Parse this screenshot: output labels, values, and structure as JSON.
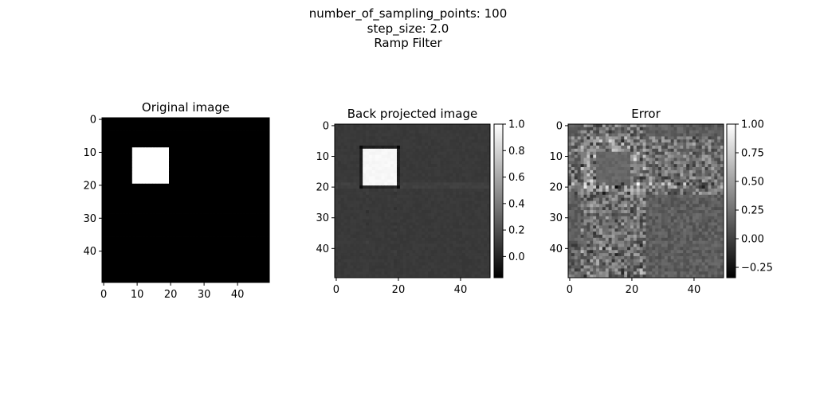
{
  "figure": {
    "suptitle_lines": [
      "number_of_sampling_points: 100",
      "step_size: 2.0",
      "Ramp Filter"
    ]
  },
  "chart_data": [
    {
      "type": "heatmap",
      "title": "Original image",
      "colormap": "gray",
      "shape": [
        50,
        50
      ],
      "x_ticks": [
        0,
        10,
        20,
        30,
        40
      ],
      "y_ticks": [
        0,
        10,
        20,
        30,
        40
      ],
      "background_value": 0,
      "square": {
        "rows": [
          9,
          19
        ],
        "cols": [
          9,
          19
        ],
        "value": 1
      },
      "colorbar": null
    },
    {
      "type": "heatmap",
      "title": "Back projected image",
      "colormap": "gray",
      "shape": [
        50,
        50
      ],
      "x_ticks": [
        0,
        20,
        40
      ],
      "y_ticks": [
        0,
        10,
        20,
        30,
        40
      ],
      "background_value": 0.1,
      "square": {
        "rows": [
          8,
          19
        ],
        "cols": [
          9,
          19
        ],
        "value": 0.98
      },
      "colorbar": {
        "range": [
          -0.16,
          1.0
        ],
        "ticks": [
          0.0,
          0.2,
          0.4,
          0.6,
          0.8,
          1.0
        ],
        "tick_labels": [
          "0.0",
          "0.2",
          "0.4",
          "0.6",
          "0.8",
          "1.0"
        ]
      }
    },
    {
      "type": "heatmap",
      "title": "Error",
      "colormap": "gray",
      "shape": [
        50,
        50
      ],
      "x_ticks": [
        0,
        20,
        40
      ],
      "y_ticks": [
        0,
        10,
        20,
        30,
        40
      ],
      "background_value": 0.15,
      "square": {
        "rows": [
          9,
          19
        ],
        "cols": [
          9,
          19
        ],
        "value": 0.2
      },
      "colorbar": {
        "range": [
          -0.34,
          1.0
        ],
        "ticks": [
          -0.25,
          0.0,
          0.25,
          0.5,
          0.75,
          1.0
        ],
        "tick_labels": [
          "−0.25",
          "0.00",
          "0.25",
          "0.50",
          "0.75",
          "1.00"
        ]
      }
    }
  ]
}
